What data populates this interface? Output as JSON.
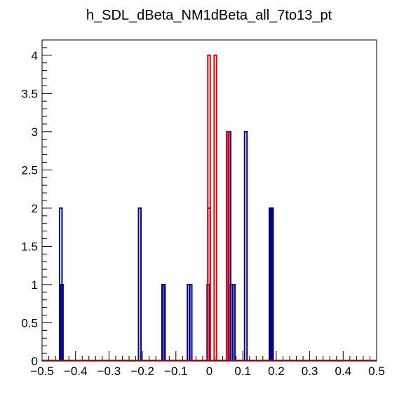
{
  "chart_data": {
    "type": "bar",
    "title": "h_SDL_dBeta_NM1dBeta_all_7to13_pt",
    "xlabel": "",
    "ylabel": "",
    "xlim": [
      -0.5,
      0.5
    ],
    "ylim": [
      0,
      4.2
    ],
    "x_ticks": [
      "−0.5",
      "−0.4",
      "−0.3",
      "−0.2",
      "−0.1",
      "0",
      "0.1",
      "0.2",
      "0.3",
      "0.4",
      "0.5"
    ],
    "x_tick_values": [
      -0.5,
      -0.4,
      -0.3,
      -0.2,
      -0.1,
      0,
      0.1,
      0.2,
      0.3,
      0.4,
      0.5
    ],
    "y_ticks": [
      "0",
      "0.5",
      "1",
      "1.5",
      "2",
      "2.5",
      "3",
      "3.5",
      "4"
    ],
    "y_tick_values": [
      0,
      0.5,
      1,
      1.5,
      2,
      2.5,
      3,
      3.5,
      4
    ],
    "grid": false,
    "legend": "none",
    "series": [
      {
        "color": "#00008b",
        "bins": [
          {
            "x": -0.444,
            "value": 2
          },
          {
            "x": -0.441,
            "value": 1
          },
          {
            "x": -0.208,
            "value": 2
          },
          {
            "x": -0.138,
            "value": 1
          },
          {
            "x": -0.136,
            "value": 1
          },
          {
            "x": -0.062,
            "value": 1
          },
          {
            "x": -0.056,
            "value": 1
          },
          {
            "x": -0.003,
            "value": 1
          },
          {
            "x": -0.001,
            "value": 2
          },
          {
            "x": 0.06,
            "value": 3
          },
          {
            "x": 0.067,
            "value": 1
          },
          {
            "x": 0.073,
            "value": 1
          },
          {
            "x": 0.109,
            "value": 3
          },
          {
            "x": 0.183,
            "value": 2
          },
          {
            "x": 0.187,
            "value": 2
          }
        ]
      },
      {
        "color": "#ff0000",
        "bins": [
          {
            "x": -0.001,
            "value": 4
          },
          {
            "x": 0.018,
            "value": 4
          },
          {
            "x": 0.055,
            "value": 3
          }
        ]
      }
    ]
  }
}
